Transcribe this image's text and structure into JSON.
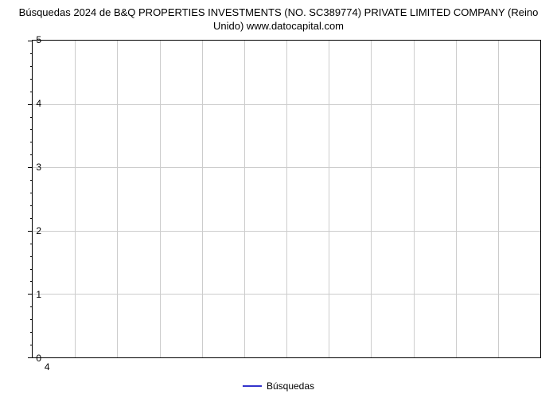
{
  "chart": {
    "type": "line",
    "title": "Búsquedas 2024 de B&Q PROPERTIES INVESTMENTS (NO. SC389774) PRIVATE LIMITED COMPANY (Reino Unido) www.datocapital.com",
    "title_fontsize": 13,
    "title_color": "#000000",
    "background_color": "#ffffff",
    "border_color": "#000000",
    "grid_color": "#cccccc",
    "y_axis": {
      "min": 0,
      "max": 5,
      "major_ticks": [
        0,
        1,
        2,
        3,
        4,
        5
      ],
      "minor_tick_count_between": 4,
      "label_fontsize": 12
    },
    "x_axis": {
      "ticks": [
        "4"
      ],
      "tick_positions_percent": [
        3
      ],
      "vertical_gridlines_count": 12,
      "label_fontsize": 12
    },
    "series": [
      {
        "name": "Búsquedas",
        "color": "#3333cc",
        "line_width": 2,
        "data": []
      }
    ],
    "legend": {
      "position": "bottom-center",
      "fontsize": 12,
      "items": [
        {
          "label": "Búsquedas",
          "color": "#3333cc"
        }
      ]
    }
  }
}
